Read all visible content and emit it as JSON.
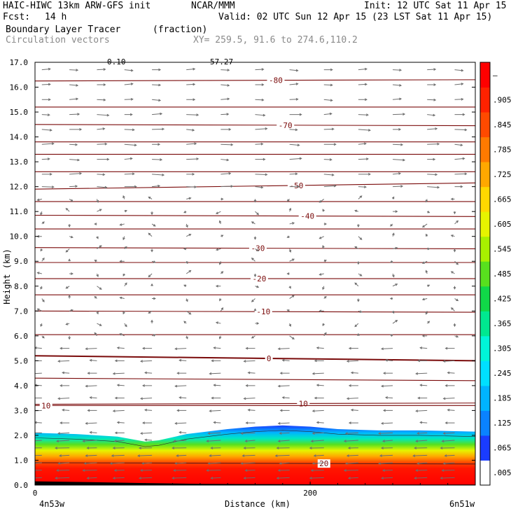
{
  "header": {
    "model": "HAIC-HIWC 13km ARW-GFS init",
    "center": "NCAR/MMM",
    "init": "Init: 12 UTC Sat 11 Apr 15",
    "fcst_label": "Fcst:",
    "fcst_value": "14 h",
    "valid": "Valid: 02 UTC Sun 12 Apr 15 (23 LST Sat 11 Apr 15)",
    "field_name": "Boundary Layer Tracer",
    "field_units": "(fraction)",
    "vectors_label": "Circulation vectors",
    "xy_label": "XY= 259.5, 91.6 to 274.6,110.2",
    "top_clipped_left": "0.10",
    "top_clipped_mid": "57.27"
  },
  "chart_data": {
    "type": "heatmap",
    "title": "Boundary Layer Tracer",
    "units": "(fraction)",
    "xlabel": "Distance (km)",
    "ylabel": "Height (km)",
    "xlim": [
      0,
      320
    ],
    "ylim": [
      0,
      17
    ],
    "x_ticks": [
      0,
      200
    ],
    "x_tick_labels": [
      "0",
      "200"
    ],
    "x_end_labels": [
      "4n53w",
      "6n51w"
    ],
    "y_ticks": [
      0,
      1,
      2,
      3,
      4,
      5,
      6,
      7,
      8,
      9,
      10,
      11,
      12,
      13,
      14,
      15,
      16,
      17
    ],
    "y_tick_labels": [
      "0.0",
      "1.0",
      "2.0",
      "3.0",
      "4.0",
      "5.0",
      "6.0",
      "7.0",
      "8.0",
      "9.0",
      "10.0",
      "11.0",
      "12.0",
      "13.0",
      "14.0",
      "15.0",
      "16.0",
      "17.0"
    ],
    "colorbar": {
      "labels": [
        ".005",
        ".065",
        ".125",
        ".185",
        ".245",
        ".305",
        ".365",
        ".425",
        ".485",
        ".545",
        ".605",
        ".665",
        ".725",
        ".785",
        ".845",
        ".905",
        "–"
      ],
      "colors": [
        "#ffffff",
        "#1a3cff",
        "#0a82ff",
        "#00b4ff",
        "#00e0ff",
        "#00f5d8",
        "#00e890",
        "#10d848",
        "#58e01e",
        "#a8f000",
        "#e6f400",
        "#ffd800",
        "#ffa800",
        "#ff7a00",
        "#ff4a00",
        "#ff2200",
        "#ff0000"
      ]
    },
    "tracer_top_km": [
      [
        0,
        2.1
      ],
      [
        30,
        2.05
      ],
      [
        60,
        1.95
      ],
      [
        80,
        1.75
      ],
      [
        90,
        1.8
      ],
      [
        110,
        2.05
      ],
      [
        140,
        2.25
      ],
      [
        160,
        2.35
      ],
      [
        180,
        2.4
      ],
      [
        200,
        2.35
      ],
      [
        220,
        2.25
      ],
      [
        250,
        2.2
      ],
      [
        280,
        2.2
      ],
      [
        320,
        2.15
      ]
    ],
    "terrain_km": [
      [
        0,
        0.15
      ],
      [
        40,
        0.12
      ],
      [
        80,
        0.08
      ],
      [
        120,
        0.05
      ],
      [
        160,
        0.04
      ],
      [
        200,
        0.03
      ],
      [
        240,
        0.02
      ],
      [
        280,
        0.02
      ],
      [
        320,
        0.02
      ]
    ],
    "temperature_contours": [
      {
        "label": "-80",
        "y_left": 16.25,
        "y_right": 16.3,
        "label_x": 175
      },
      {
        "label": "",
        "y_left": 15.2,
        "y_right": 15.2,
        "label_x": null
      },
      {
        "label": "-70",
        "y_left": 14.5,
        "y_right": 14.45,
        "label_x": 182
      },
      {
        "label": "",
        "y_left": 13.8,
        "y_right": 13.8,
        "label_x": null
      },
      {
        "label": "",
        "y_left": 13.3,
        "y_right": 13.3,
        "label_x": null
      },
      {
        "label": "",
        "y_left": 12.6,
        "y_right": 12.6,
        "label_x": null
      },
      {
        "label": "-50",
        "y_left": 11.9,
        "y_right": 12.15,
        "label_x": 190
      },
      {
        "label": "",
        "y_left": 11.4,
        "y_right": 11.4,
        "label_x": null
      },
      {
        "label": "-40",
        "y_left": 10.85,
        "y_right": 10.8,
        "label_x": 198
      },
      {
        "label": "",
        "y_left": 10.3,
        "y_right": 10.3,
        "label_x": null
      },
      {
        "label": "-30",
        "y_left": 9.55,
        "y_right": 9.5,
        "label_x": 162
      },
      {
        "label": "",
        "y_left": 8.95,
        "y_right": 8.95,
        "label_x": null
      },
      {
        "label": "-20",
        "y_left": 8.3,
        "y_right": 8.3,
        "label_x": 163
      },
      {
        "label": "",
        "y_left": 7.65,
        "y_right": 7.65,
        "label_x": null
      },
      {
        "label": "-10",
        "y_left": 7.0,
        "y_right": 6.95,
        "label_x": 166
      },
      {
        "label": "",
        "y_left": 6.05,
        "y_right": 6.05,
        "label_x": null
      },
      {
        "label": "0",
        "y_left": 5.2,
        "y_right": 5.0,
        "label_x": 170
      },
      {
        "label": "",
        "y_left": 4.3,
        "y_right": 4.2,
        "label_x": null
      },
      {
        "label": "10",
        "y_left": 3.25,
        "y_right": 3.3,
        "label_x": 195
      },
      {
        "label": "10",
        "y_left": 3.2,
        "y_right": 3.2,
        "label_x": 8
      },
      {
        "label": "20",
        "y_left": 0.9,
        "y_right": 0.85,
        "label_x": 210
      }
    ],
    "vector_columns_km": [
      5,
      25,
      45,
      65,
      85,
      110,
      135,
      160,
      185,
      210,
      235,
      260,
      285,
      305
    ],
    "vector_rows_km": [
      16.7,
      16.1,
      15.5,
      14.9,
      14.3,
      13.7,
      13.1,
      12.5,
      12.0,
      11.5,
      11.0,
      10.5,
      10.0,
      9.5,
      9.0,
      8.5,
      8.0,
      7.5,
      7.0,
      6.5,
      6.0,
      5.5,
      5.0,
      4.5,
      4.0,
      3.5,
      3.0,
      2.5,
      2.1,
      1.8,
      1.5,
      1.2,
      0.9,
      0.6,
      0.3
    ]
  }
}
